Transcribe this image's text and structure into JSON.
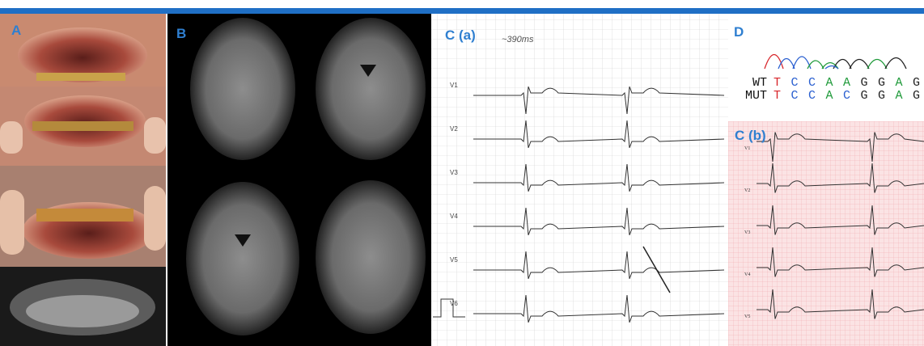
{
  "panels": {
    "a": "A",
    "b": "B",
    "ca": "C (a)",
    "d": "D",
    "cb": "C (b)"
  },
  "ecg_a": {
    "note": "~390ms",
    "leads": [
      "V1",
      "V2",
      "V3",
      "V4",
      "V5",
      "V6"
    ]
  },
  "ecg_b": {
    "leads": [
      "V1",
      "V2",
      "V3",
      "V4",
      "V5"
    ]
  },
  "sequence": {
    "base_colors": {
      "T": "#d8262b",
      "C": "#2a5fd0",
      "A": "#1f9a3a",
      "G": "#222222"
    },
    "rows": [
      {
        "label": "WT",
        "bases": [
          "T",
          "C",
          "C",
          "A",
          "A",
          "G",
          "G",
          "A",
          "G"
        ]
      },
      {
        "label": "MUT",
        "bases": [
          "T",
          "C",
          "C",
          "A",
          "C",
          "G",
          "G",
          "A",
          "G"
        ]
      }
    ]
  }
}
